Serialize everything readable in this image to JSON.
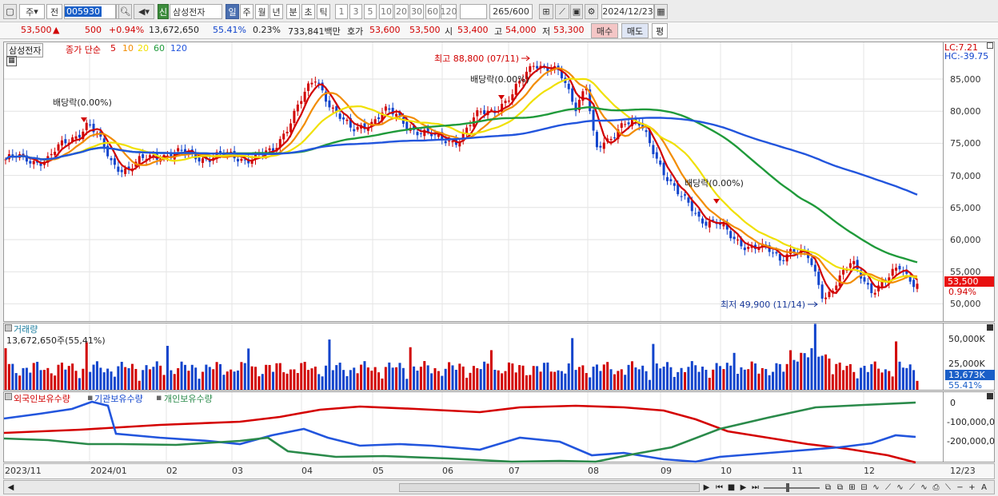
{
  "toolbar": {
    "period": "주",
    "mode": "전",
    "code": "005930",
    "stock_name": "삼성전자",
    "intervals": [
      "일",
      "주",
      "월",
      "년",
      "분",
      "초",
      "틱"
    ],
    "numbers": [
      "1",
      "3",
      "5",
      "10",
      "20",
      "30",
      "60",
      "120"
    ],
    "count": "265",
    "count_total": "/600",
    "date": "2024/12/23",
    "tag": "신"
  },
  "quote": {
    "price": "53,500",
    "change_arrow": "▲",
    "change": "500",
    "rate": "+0.94%",
    "volume": "13,672,650",
    "volume_ratio": "55.41%",
    "turnover": "0.23%",
    "amount": "733,841백만",
    "ask_label": "호가",
    "ask": "53,600",
    "bid": "53,500",
    "open_label": "시",
    "open": "53,400",
    "high_label": "고",
    "high": "54,000",
    "low_label": "저",
    "low": "53,300",
    "buy": "매수",
    "sell": "매도",
    "eval": "평"
  },
  "price_pane": {
    "stock": "삼성전자",
    "ma_title": "종가 단순",
    "ma_periods": [
      "5",
      "10",
      "20",
      "60",
      "120"
    ],
    "lc": "LC:7.21",
    "hc": "HC:-39.75",
    "high_note": "최고 88,800 (07/11)",
    "low_note": "최저 49,900 (11/14)",
    "dividend_notes": [
      "배당락(0.00%)",
      "배당락(0.00%)",
      "배당락(0.00%)"
    ],
    "axis_ticks": [
      "85,000",
      "80,000",
      "75,000",
      "70,000",
      "65,000",
      "60,000",
      "55,000",
      "50,000"
    ],
    "current_price": "53,500",
    "current_rate": "0.94%"
  },
  "volume_pane": {
    "title": "거래량",
    "value": "13,672,650주(55,41%)",
    "axis_ticks": [
      "50,000K",
      "25,000K"
    ],
    "current": "13,673K",
    "current_rate": "55.41%"
  },
  "holding_pane": {
    "legend": [
      "외국인보유수량",
      "기관보유수량",
      "개인보유수량"
    ],
    "axis_ticks": [
      "0",
      "-100,000,0",
      "-200,000,0"
    ]
  },
  "x_axis": [
    "2023/11",
    "2024/01",
    "02",
    "03",
    "04",
    "05",
    "06",
    "07",
    "08",
    "09",
    "10",
    "11",
    "12",
    "12/23"
  ],
  "colors": {
    "ma5": "#d10000",
    "ma10": "#f28c00",
    "ma20": "#f0e000",
    "ma60": "#1f9a3a",
    "ma120": "#2255dd",
    "up": "#d10000",
    "down": "#1144cc",
    "foreign": "#d40000",
    "inst": "#2255dd",
    "indiv": "#2a8a4a"
  },
  "chart_data": {
    "type": "candlestick",
    "unit": "KRW",
    "x": [
      "2023/11",
      "2024/01",
      "02",
      "03",
      "04",
      "05",
      "06",
      "07",
      "08",
      "09",
      "10",
      "11",
      "12",
      "12/23"
    ],
    "close_approx": [
      72500,
      78000,
      73500,
      73000,
      84500,
      78000,
      76500,
      87500,
      72500,
      64500,
      60000,
      50500,
      54500,
      53500
    ],
    "ylim": [
      48000,
      90000
    ],
    "ma_periods": [
      5,
      10,
      20,
      60,
      120
    ],
    "holdings": {
      "series": [
        "외국인보유수량",
        "기관보유수량",
        "개인보유수량"
      ]
    }
  }
}
